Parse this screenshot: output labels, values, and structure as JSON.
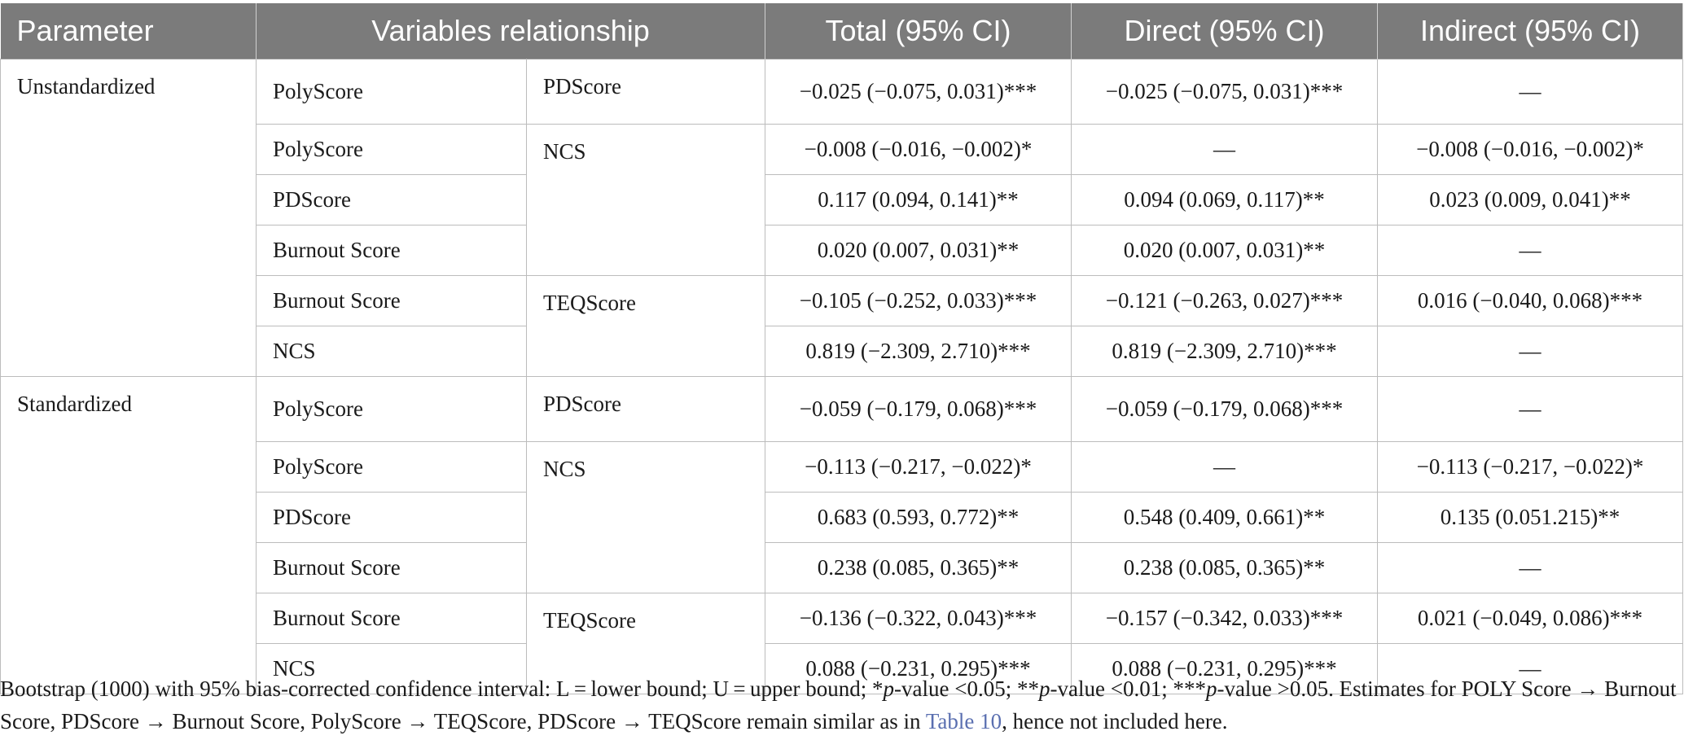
{
  "table": {
    "headers": {
      "parameter": "Parameter",
      "relationship": "Variables relationship",
      "total": "Total (95% CI)",
      "direct": "Direct (95% CI)",
      "indirect": "Indirect (95% CI)"
    },
    "groups": [
      {
        "parameter": "Unstandardized",
        "blocks": [
          {
            "to": "PDScore",
            "rows": [
              {
                "from": "PolyScore",
                "total": "−0.025 (−0.075, 0.031)***",
                "direct": "−0.025 (−0.075, 0.031)***",
                "indirect": "—"
              }
            ]
          },
          {
            "to": "NCS",
            "rows": [
              {
                "from": "PolyScore",
                "total": "−0.008 (−0.016, −0.002)*",
                "direct": "—",
                "indirect": "−0.008 (−0.016, −0.002)*"
              },
              {
                "from": "PDScore",
                "total": "0.117 (0.094, 0.141)**",
                "direct": "0.094 (0.069, 0.117)**",
                "indirect": "0.023 (0.009, 0.041)**"
              },
              {
                "from": "Burnout Score",
                "total": "0.020 (0.007, 0.031)**",
                "direct": "0.020 (0.007, 0.031)**",
                "indirect": "—"
              }
            ]
          },
          {
            "to": "TEQScore",
            "rows": [
              {
                "from": "Burnout Score",
                "total": "−0.105 (−0.252, 0.033)***",
                "direct": "−0.121 (−0.263, 0.027)***",
                "indirect": "0.016 (−0.040, 0.068)***"
              },
              {
                "from": "NCS",
                "total": "0.819 (−2.309, 2.710)***",
                "direct": "0.819 (−2.309, 2.710)***",
                "indirect": "—"
              }
            ]
          }
        ]
      },
      {
        "parameter": "Standardized",
        "blocks": [
          {
            "to": "PDScore",
            "rows": [
              {
                "from": "PolyScore",
                "total": "−0.059 (−0.179, 0.068)***",
                "direct": "−0.059 (−0.179, 0.068)***",
                "indirect": "—"
              }
            ]
          },
          {
            "to": "NCS",
            "rows": [
              {
                "from": "PolyScore",
                "total": "−0.113 (−0.217, −0.022)*",
                "direct": "—",
                "indirect": "−0.113 (−0.217, −0.022)*"
              },
              {
                "from": "PDScore",
                "total": "0.683 (0.593, 0.772)**",
                "direct": "0.548 (0.409, 0.661)**",
                "indirect": "0.135 (0.051.215)**"
              },
              {
                "from": "Burnout Score",
                "total": "0.238 (0.085, 0.365)**",
                "direct": "0.238 (0.085, 0.365)**",
                "indirect": "—"
              }
            ]
          },
          {
            "to": "TEQScore",
            "rows": [
              {
                "from": "Burnout Score",
                "total": "−0.136 (−0.322, 0.043)***",
                "direct": "−0.157 (−0.342, 0.033)***",
                "indirect": "0.021 (−0.049, 0.086)***"
              },
              {
                "from": "NCS",
                "total": "0.088 (−0.231, 0.295)***",
                "direct": "0.088 (−0.231, 0.295)***",
                "indirect": "—"
              }
            ]
          }
        ]
      }
    ]
  },
  "footnote": {
    "part1": "Bootstrap (1000) with 95% bias-corrected confidence interval: L = lower bound; U = upper bound; *",
    "p1": "p",
    "part2": "-value <0.05; **",
    "p2": "p",
    "part3": "-value <0.01; ***",
    "p3": "p",
    "part4": "-value >0.05. Estimates for POLY Score → Burnout Score, PDScore → Burnout Score, PolyScore → TEQScore, PDScore → TEQScore remain similar as in ",
    "link": "Table 10",
    "part5": ", hence not included here."
  }
}
